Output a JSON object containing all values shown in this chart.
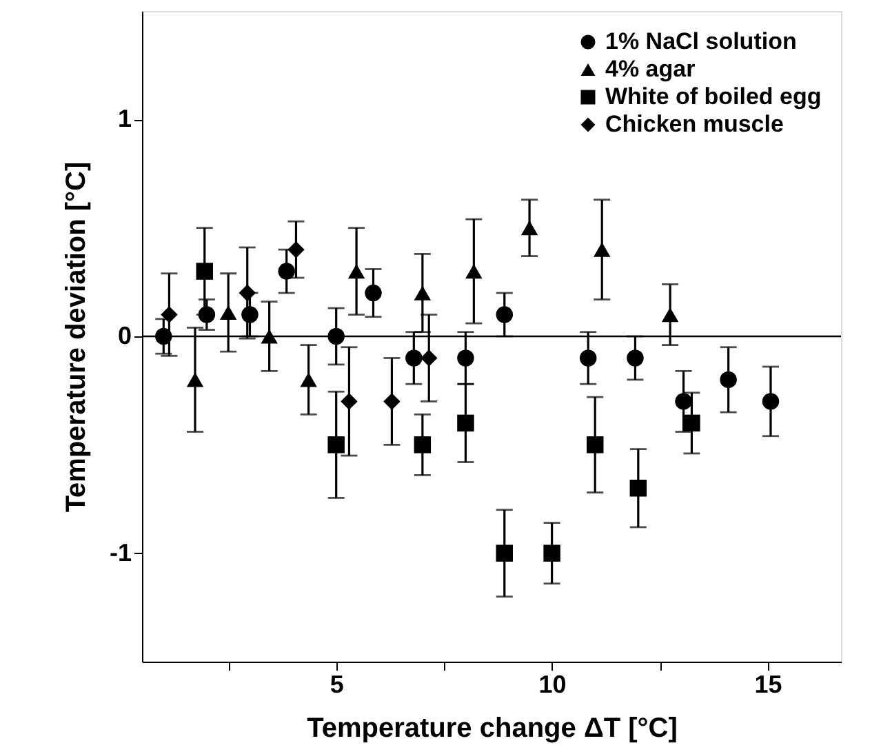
{
  "chart_data": {
    "type": "scatter",
    "xlabel": "Temperature change ΔT [°C]",
    "ylabel": "Temperature deviation [°C]",
    "xlim": [
      0.5,
      16.7
    ],
    "ylim": [
      -1.5,
      1.5
    ],
    "xticks": [
      {
        "value": 2.5,
        "label": null
      },
      5,
      {
        "value": 7.5,
        "label": null
      },
      10,
      {
        "value": 12.5,
        "label": null
      },
      15
    ],
    "yticks": [
      -1,
      0,
      1
    ],
    "grid": false,
    "legend": "top right",
    "ref_lines": [
      {
        "axis": "y",
        "value": 0,
        "color": "#000000"
      }
    ],
    "series": [
      {
        "name": "1% NaCl solution",
        "color": "#000000",
        "marker": "circle",
        "x": [
          1.0,
          2.0,
          3.0,
          3.85,
          5.0,
          5.86,
          6.8,
          8.0,
          8.9,
          10.84,
          11.93,
          13.05,
          14.09,
          15.07
        ],
        "values": [
          0,
          0.1,
          0.1,
          0.3,
          0,
          0.2,
          -0.1,
          -0.1,
          0.1,
          -0.1,
          -0.1,
          -0.3,
          -0.2,
          -0.3
        ],
        "errors": [
          0.08,
          0.07,
          0.1,
          0.1,
          0.13,
          0.11,
          0.12,
          0.12,
          0.1,
          0.12,
          0.1,
          0.14,
          0.15,
          0.16
        ]
      },
      {
        "name": "4% agar",
        "color": "#000000",
        "marker": "triangle",
        "x": [
          1.73,
          2.5,
          3.45,
          4.36,
          5.47,
          7.0,
          8.19,
          9.48,
          11.16,
          12.74
        ],
        "values": [
          -0.2,
          0.11,
          0,
          -0.2,
          0.3,
          0.2,
          0.3,
          0.5,
          0.4,
          0.1
        ],
        "errors": [
          0.24,
          0.18,
          0.16,
          0.16,
          0.2,
          0.18,
          0.24,
          0.13,
          0.23,
          0.14
        ]
      },
      {
        "name": "White of boiled egg",
        "color": "#000000",
        "marker": "square",
        "x": [
          1.95,
          5.0,
          7.0,
          8.0,
          8.9,
          10.0,
          11.0,
          12.0,
          13.24
        ],
        "values": [
          0.3,
          -0.5,
          -0.5,
          -0.4,
          -1.0,
          -1.0,
          -0.5,
          -0.7,
          -0.4
        ],
        "errors": [
          0.2,
          0.245,
          0.14,
          0.18,
          0.2,
          0.14,
          0.22,
          0.18,
          0.14
        ]
      },
      {
        "name": "Chicken muscle",
        "color": "#000000",
        "marker": "diamond",
        "x": [
          1.13,
          2.94,
          4.07,
          5.3,
          6.29,
          7.15
        ],
        "values": [
          0.1,
          0.2,
          0.4,
          -0.3,
          -0.3,
          -0.1
        ],
        "errors": [
          0.19,
          0.21,
          0.13,
          0.25,
          0.2,
          0.2
        ]
      }
    ]
  }
}
